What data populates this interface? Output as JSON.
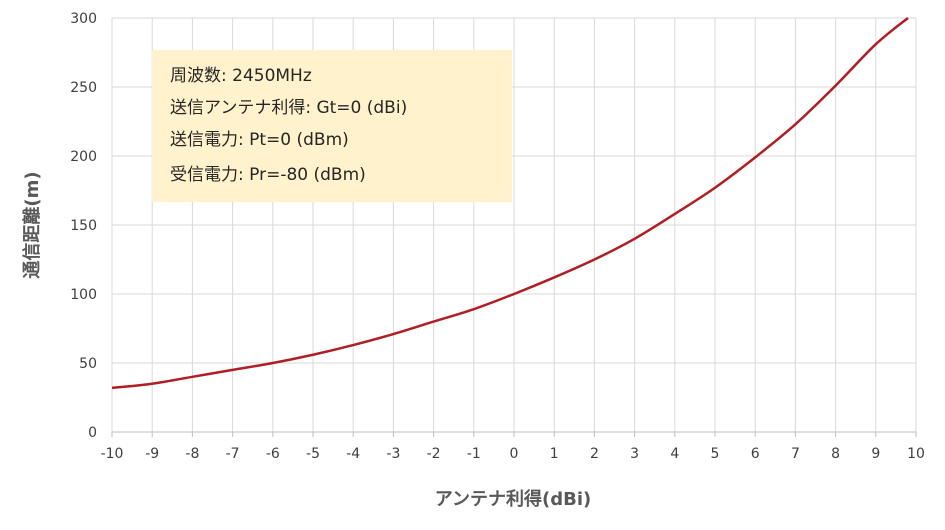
{
  "chart_data": {
    "type": "line",
    "title": "",
    "xlabel": "アンテナ利得(dBi)",
    "ylabel": "通信距離(m)",
    "xlim": [
      -10,
      10
    ],
    "ylim": [
      0,
      300
    ],
    "x_ticks": [
      "-10",
      "-9",
      "-8",
      "-7",
      "-6",
      "-5",
      "-4",
      "-3",
      "-2",
      "-1",
      "0",
      "1",
      "2",
      "3",
      "4",
      "5",
      "6",
      "7",
      "8",
      "9",
      "10"
    ],
    "y_ticks": [
      "0",
      "50",
      "100",
      "150",
      "200",
      "250",
      "300"
    ],
    "grid": true,
    "series": [
      {
        "color": "#b01e23",
        "x": [
          -10,
          -9,
          -8,
          -7,
          -6,
          -5,
          -4,
          -3,
          -2,
          -1,
          0,
          1,
          2,
          3,
          4,
          5,
          6,
          7,
          8,
          9,
          9.8
        ],
        "y": [
          32,
          35,
          40,
          45,
          50,
          56,
          63,
          71,
          80,
          89,
          100,
          112,
          125,
          140,
          158,
          177,
          199,
          223,
          251,
          281,
          300
        ]
      }
    ],
    "annotation": [
      "周波数: 2450MHz",
      "送信アンテナ利得: Gt=0 (dBi)",
      "送信電力: Pt=0 (dBm)",
      "受信電力: Pr=-80 (dBm)"
    ],
    "annotation_bg": "#fff2cc"
  }
}
